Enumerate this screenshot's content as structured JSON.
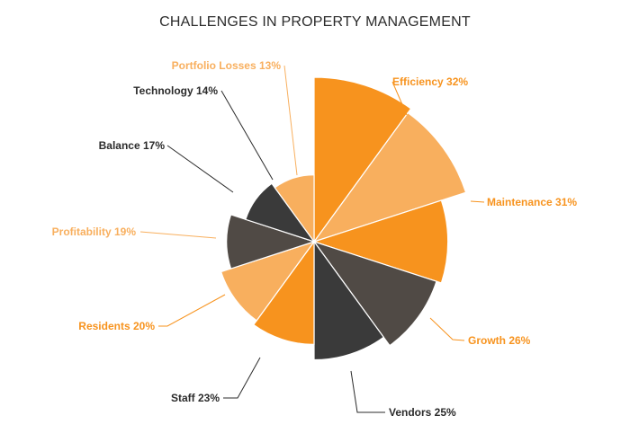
{
  "chart_data": {
    "type": "pie",
    "title": "CHALLENGES IN PROPERTY MANAGEMENT",
    "categories": [
      "Efficiency",
      "Maintenance",
      "Growth",
      "Vendors",
      "Staff",
      "Residents",
      "Profitability",
      "Balance",
      "Technology",
      "Portfolio Losses"
    ],
    "values": [
      32,
      31,
      26,
      25,
      23,
      20,
      19,
      17,
      14,
      13
    ],
    "labels": [
      "Efficiency 32%",
      "Maintenance 31%",
      "Growth 26%",
      "Vendors 25%",
      "Staff 23%",
      "Residents 20%",
      "Profitability 19%",
      "Balance 17%",
      "Technology 14%",
      "Portfolio Losses 13%"
    ],
    "colors": [
      "#f7931e",
      "#f8af5e",
      "#f7931e",
      "#504a45",
      "#3a3a3a",
      "#f7931e",
      "#f8af5e",
      "#504a45",
      "#3a3a3a",
      "#f8af5e"
    ],
    "label_colors": [
      "#f7931e",
      "#f7931e",
      "#f7931e",
      "#2b2b2b",
      "#2b2b2b",
      "#f7931e",
      "#f8af5e",
      "#2b2b2b",
      "#2b2b2b",
      "#f8af5e"
    ],
    "legend": "none"
  }
}
